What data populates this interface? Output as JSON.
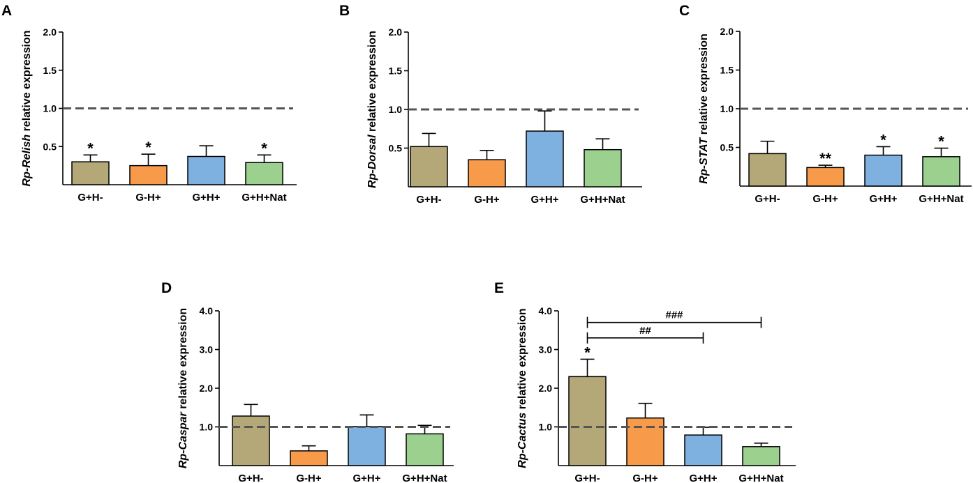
{
  "colors": {
    "G+H-": "#b4a878",
    "G-H+": "#f79a4a",
    "G+H+": "#7eb0e0",
    "G+H+Nat": "#9bd08e",
    "outline": "#000000",
    "reference": "#555555"
  },
  "chart_data": [
    {
      "type": "bar",
      "panel": "A",
      "ylabel_italic": "Rp-Relish",
      "ylabel_rest": " relative expression",
      "ylim": [
        0,
        2.0
      ],
      "yticks": [
        "0.5",
        "1.0",
        "1.5",
        "2.0"
      ],
      "reference_line": 1.0,
      "categories": [
        "G+H-",
        "G-H+",
        "G+H+",
        "G+H+Nat"
      ],
      "values": [
        0.3,
        0.25,
        0.37,
        0.29
      ],
      "errors": [
        0.09,
        0.15,
        0.14,
        0.1
      ],
      "annotations": [
        "*",
        "*",
        "",
        "*"
      ]
    },
    {
      "type": "bar",
      "panel": "B",
      "ylabel_italic": "Rp-Dorsal",
      "ylabel_rest": " relative expression",
      "ylim": [
        0,
        2.0
      ],
      "yticks": [
        "0.5",
        "1.0",
        "1.5",
        "2.0"
      ],
      "reference_line": 1.0,
      "categories": [
        "G+H-",
        "G-H+",
        "G+H+",
        "G+H+Nat"
      ],
      "values": [
        0.52,
        0.35,
        0.72,
        0.48
      ],
      "errors": [
        0.17,
        0.12,
        0.26,
        0.14
      ],
      "annotations": [
        "",
        "",
        "",
        ""
      ]
    },
    {
      "type": "bar",
      "panel": "C",
      "ylabel_italic": "Rp-STAT",
      "ylabel_rest": " relative expression",
      "ylim": [
        0,
        2.0
      ],
      "yticks": [
        "0.5",
        "1.0",
        "1.5",
        "2.0"
      ],
      "reference_line": 1.0,
      "categories": [
        "G+H-",
        "G-H+",
        "G+H+",
        "G+H+Nat"
      ],
      "values": [
        0.42,
        0.24,
        0.4,
        0.38
      ],
      "errors": [
        0.16,
        0.03,
        0.11,
        0.11
      ],
      "annotations": [
        "",
        "**",
        "*",
        "*"
      ]
    },
    {
      "type": "bar",
      "panel": "D",
      "ylabel_italic": "Rp-Caspar",
      "ylabel_rest": " relative expression",
      "ylim": [
        0,
        4.0
      ],
      "yticks": [
        "1.0",
        "2.0",
        "3.0",
        "4.0"
      ],
      "reference_line": 1.0,
      "categories": [
        "G+H-",
        "G-H+",
        "G+H+",
        "G+H+Nat"
      ],
      "values": [
        1.28,
        0.38,
        1.01,
        0.82
      ],
      "errors": [
        0.3,
        0.13,
        0.3,
        0.22
      ],
      "annotations": [
        "",
        "",
        "",
        ""
      ]
    },
    {
      "type": "bar",
      "panel": "E",
      "ylabel_italic": "Rp-Cactus",
      "ylabel_rest": " relative expression",
      "ylim": [
        0,
        4.0
      ],
      "yticks": [
        "1.0",
        "2.0",
        "3.0",
        "4.0"
      ],
      "reference_line": 1.0,
      "categories": [
        "G+H-",
        "G-H+",
        "G+H+",
        "G+H+Nat"
      ],
      "values": [
        2.3,
        1.23,
        0.79,
        0.49
      ],
      "errors": [
        0.45,
        0.38,
        0.2,
        0.09
      ],
      "annotations": [
        "*",
        "",
        "",
        ""
      ],
      "brackets": [
        {
          "from": "G+H-",
          "to": "G+H+",
          "label": "##",
          "level": 3.3
        },
        {
          "from": "G+H-",
          "to": "G+H+Nat",
          "label": "###",
          "level": 3.7
        }
      ]
    }
  ]
}
